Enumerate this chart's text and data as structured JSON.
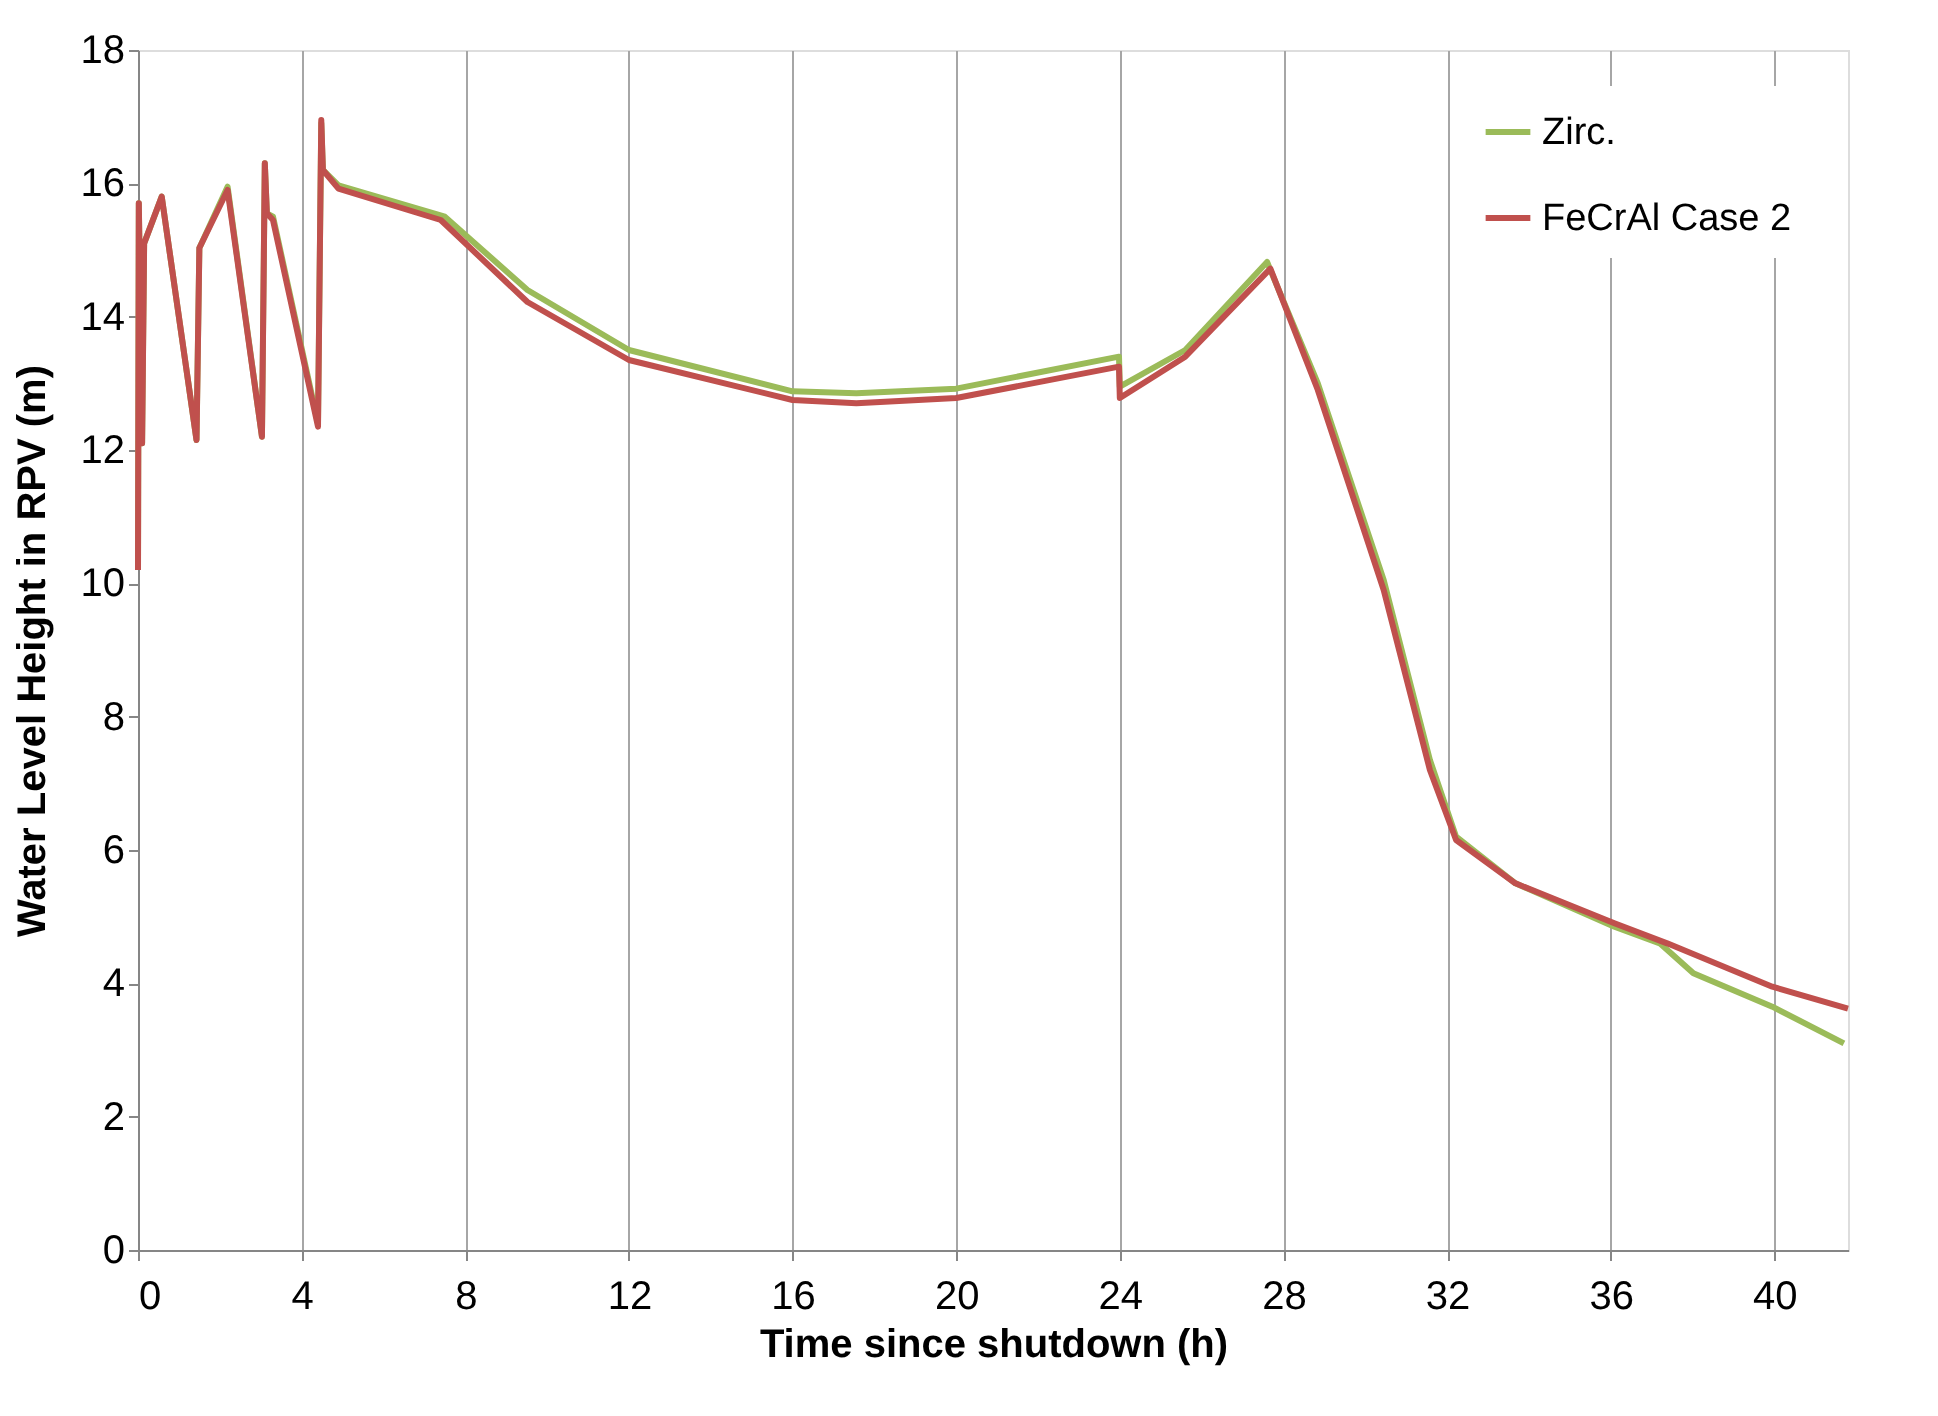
{
  "chart_data": {
    "type": "line",
    "xlabel": "Time since shutdown (h)",
    "ylabel": "Water Level Height in RPV (m)",
    "xlim": [
      0,
      41.8
    ],
    "ylim": [
      0,
      18
    ],
    "xticks": [
      0,
      4,
      8,
      12,
      16,
      20,
      24,
      28,
      32,
      36,
      40
    ],
    "yticks": [
      0,
      2,
      4,
      6,
      8,
      10,
      12,
      14,
      16,
      18
    ],
    "grid": "x",
    "legend": "top right",
    "line_style": "solid",
    "marker": "none",
    "series": [
      {
        "name": "Zirc.",
        "color": "#9bbb59",
        "x": [
          0,
          0.02,
          0.1,
          0.15,
          0.58,
          1.43,
          1.5,
          2.19,
          3.03,
          3.1,
          3.15,
          3.3,
          4.4,
          4.48,
          4.52,
          4.9,
          7.5,
          9.52,
          12,
          16,
          17.56,
          20,
          23.98,
          24.0,
          25.6,
          27.6,
          28.84,
          30.45,
          31.58,
          32.22,
          33.67,
          36.09,
          37.2,
          38.02,
          39.95,
          41.7
        ],
        "values": [
          10.2,
          15.7,
          12.1,
          15.1,
          15.8,
          12.15,
          15.03,
          15.95,
          12.2,
          16.3,
          15.55,
          15.5,
          12.4,
          16.9,
          16.2,
          15.97,
          15.5,
          14.4,
          13.5,
          12.88,
          12.85,
          12.92,
          13.4,
          12.95,
          13.5,
          14.82,
          13.0,
          10.05,
          7.35,
          6.2,
          5.5,
          4.85,
          4.6,
          4.15,
          3.65,
          3.1
        ]
      },
      {
        "name": "FeCrAl Case 2",
        "color": "#c0504d",
        "x": [
          0,
          0.02,
          0.1,
          0.15,
          0.58,
          1.43,
          1.5,
          2.19,
          3.03,
          3.1,
          3.15,
          3.3,
          4.4,
          4.48,
          4.52,
          4.9,
          7.4,
          9.52,
          12,
          16,
          17.56,
          20,
          23.98,
          24.0,
          25.6,
          27.68,
          28.84,
          30.45,
          31.58,
          32.22,
          33.67,
          36.09,
          37.38,
          39.95,
          41.8
        ],
        "values": [
          10.2,
          15.7,
          12.1,
          15.1,
          15.8,
          12.15,
          15.03,
          15.9,
          12.2,
          16.3,
          15.55,
          15.45,
          12.35,
          16.95,
          16.2,
          15.92,
          15.45,
          14.22,
          13.35,
          12.75,
          12.7,
          12.78,
          13.25,
          12.78,
          13.4,
          14.72,
          12.9,
          9.9,
          7.2,
          6.15,
          5.5,
          4.9,
          4.6,
          3.95,
          3.62
        ]
      }
    ]
  }
}
